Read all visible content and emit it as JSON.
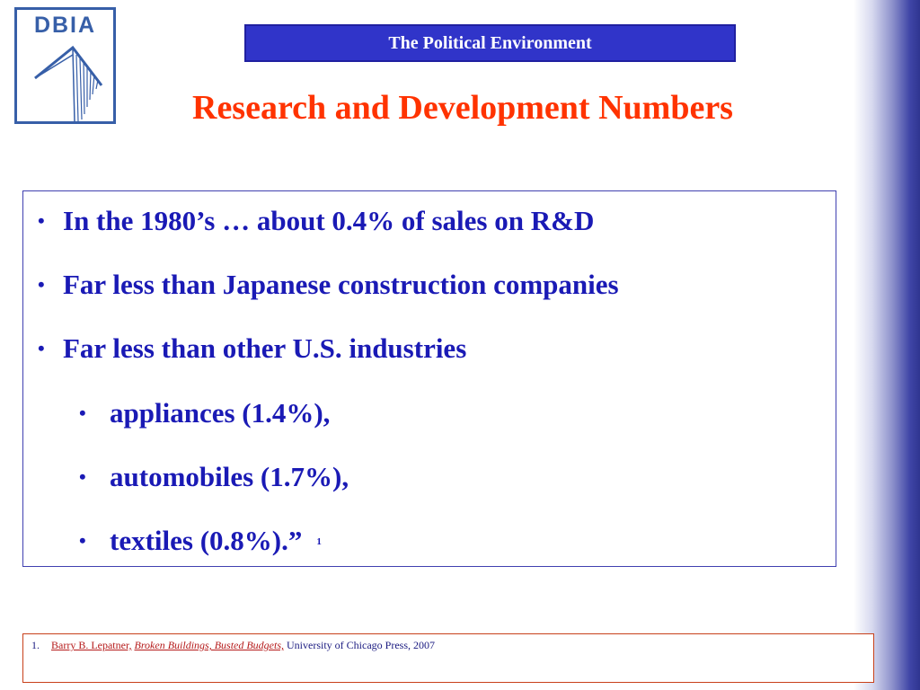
{
  "logo": {
    "text": "DBIA"
  },
  "header": {
    "topic": "The Political Environment",
    "title": "Research and Development Numbers"
  },
  "content": {
    "bullets": [
      {
        "text": "In the 1980’s …  about 0.4% of sales on R&D"
      },
      {
        "text": "Far less than Japanese construction companies"
      },
      {
        "text": "Far less than other U.S. industries"
      },
      {
        "text": "appliances (1.4%),"
      },
      {
        "text": "automobiles (1.7%),"
      },
      {
        "text": "textiles (0.8%).”",
        "footnote_ref": "1"
      }
    ]
  },
  "footnote": {
    "number": "1.",
    "author": "Barry B. Lepatner,",
    "book": "Broken Buildings, Busted Budgets,",
    "publisher": "University of Chicago Press, 2007"
  },
  "colors": {
    "title": "#ff3300",
    "banner": "#3034c9",
    "bullet_text": "#1a1ab5",
    "logo": "#375fa8"
  }
}
